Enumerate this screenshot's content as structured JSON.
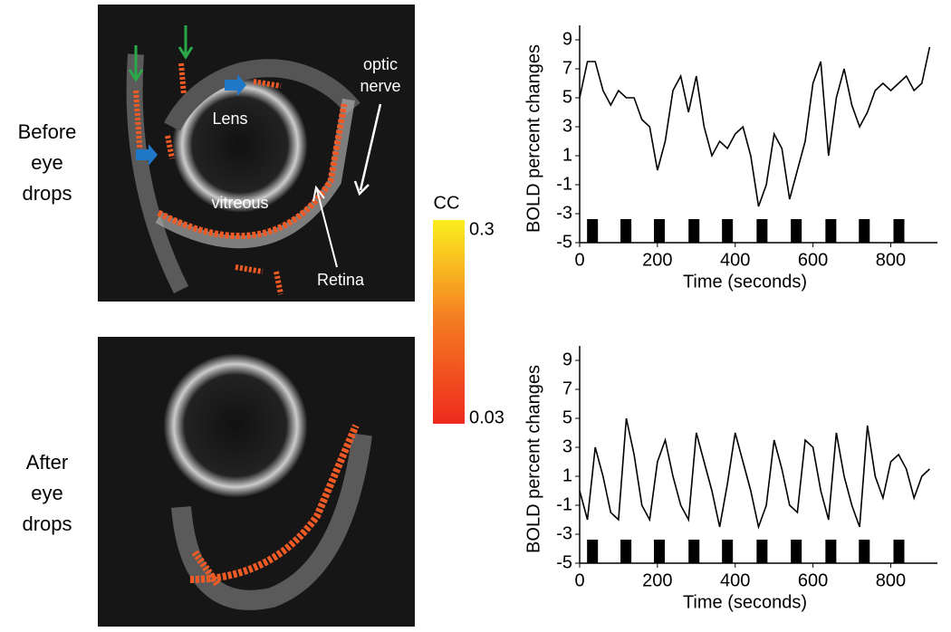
{
  "panels": {
    "before": [
      "Before",
      "eye",
      "drops"
    ],
    "after": [
      "After",
      "eye",
      "drops"
    ]
  },
  "annotations": {
    "optic_nerve": [
      "optic",
      "nerve"
    ],
    "lens": "Lens",
    "vitreous": "vitreous",
    "retina": "Retina"
  },
  "colorbar": {
    "label": "CC",
    "top": "0.3",
    "bottom": "0.03"
  },
  "chart_data": [
    {
      "type": "line",
      "ylabel": "BOLD percent changes",
      "xlabel": "Time (seconds)",
      "x": [
        0,
        20,
        40,
        60,
        80,
        100,
        120,
        140,
        160,
        180,
        200,
        220,
        240,
        260,
        280,
        300,
        320,
        340,
        360,
        380,
        400,
        420,
        440,
        460,
        480,
        500,
        520,
        540,
        560,
        580,
        600,
        620,
        640,
        660,
        680,
        700,
        720,
        740,
        760,
        780,
        800,
        820,
        840,
        860,
        880,
        900
      ],
      "series": [
        {
          "color": "#000000",
          "values": [
            5,
            7.5,
            7.5,
            5.5,
            4.5,
            5.5,
            5,
            5,
            3.5,
            3,
            0,
            2,
            5.5,
            6.5,
            4,
            6.5,
            3,
            1,
            2,
            1.5,
            2.5,
            3,
            1,
            -2.5,
            -1,
            2.5,
            1.5,
            -2,
            0,
            2,
            6,
            7.5,
            1,
            5,
            7,
            4.5,
            3,
            4,
            5.5,
            6,
            5.5,
            6,
            6.5,
            5.5,
            6,
            8.5
          ]
        }
      ],
      "blocks": [
        {
          "start": 19,
          "end": 47
        },
        {
          "start": 105,
          "end": 133
        },
        {
          "start": 191,
          "end": 219
        },
        {
          "start": 280,
          "end": 308
        },
        {
          "start": 366,
          "end": 394
        },
        {
          "start": 455,
          "end": 483
        },
        {
          "start": 543,
          "end": 571
        },
        {
          "start": 632,
          "end": 660
        },
        {
          "start": 718,
          "end": 746
        },
        {
          "start": 807,
          "end": 835
        }
      ],
      "block_color": "#000000",
      "xlim": [
        0,
        920
      ],
      "xticks": [
        0,
        200,
        400,
        600,
        800
      ],
      "ylim": [
        -5,
        10
      ],
      "yticks": [
        -5,
        -3,
        -1,
        1,
        3,
        5,
        7,
        9
      ]
    },
    {
      "type": "line",
      "ylabel": "BOLD percent changes",
      "xlabel": "Time (seconds)",
      "x": [
        0,
        20,
        40,
        60,
        80,
        100,
        120,
        140,
        160,
        180,
        200,
        220,
        240,
        260,
        280,
        300,
        320,
        340,
        360,
        380,
        400,
        420,
        440,
        460,
        480,
        500,
        520,
        540,
        560,
        580,
        600,
        620,
        640,
        660,
        680,
        700,
        720,
        740,
        760,
        780,
        800,
        820,
        840,
        860,
        880,
        900
      ],
      "series": [
        {
          "color": "#000000",
          "values": [
            0,
            -2,
            3,
            1,
            -1.5,
            -2,
            5,
            2.5,
            -1,
            -2,
            2,
            3.5,
            1,
            -1,
            -2,
            4,
            2,
            0,
            -2.5,
            0.5,
            4,
            2,
            0,
            -2.5,
            -1,
            3.5,
            1.5,
            -1,
            -1.5,
            3.5,
            3,
            0,
            -2,
            4,
            1,
            -1,
            -2.5,
            4.5,
            1,
            -0.5,
            2,
            2.5,
            1.5,
            -0.5,
            1,
            1.5
          ]
        }
      ],
      "blocks": [
        {
          "start": 19,
          "end": 47
        },
        {
          "start": 105,
          "end": 133
        },
        {
          "start": 191,
          "end": 219
        },
        {
          "start": 280,
          "end": 308
        },
        {
          "start": 366,
          "end": 394
        },
        {
          "start": 455,
          "end": 483
        },
        {
          "start": 543,
          "end": 571
        },
        {
          "start": 632,
          "end": 660
        },
        {
          "start": 718,
          "end": 746
        },
        {
          "start": 807,
          "end": 835
        }
      ],
      "block_color": "#000000",
      "xlim": [
        0,
        920
      ],
      "xticks": [
        0,
        200,
        400,
        600,
        800
      ],
      "ylim": [
        -5,
        10
      ],
      "yticks": [
        -5,
        -3,
        -1,
        1,
        3,
        5,
        7,
        9
      ]
    }
  ]
}
